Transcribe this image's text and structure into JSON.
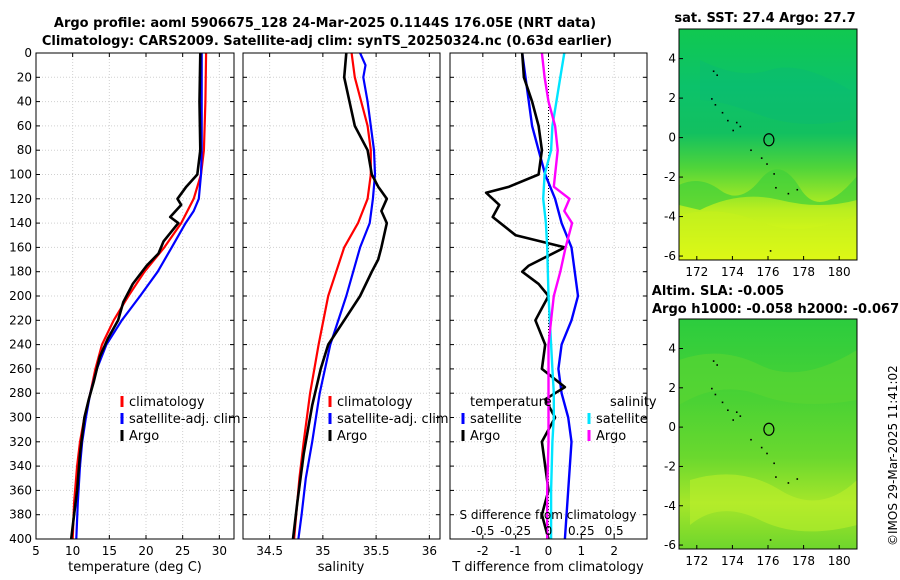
{
  "figure": {
    "title_line1": "Argo profile: aoml 5906675_128 24-Mar-2025 0.1144S 176.05E (NRT data)",
    "title_line2": "Climatology: CARS2009. Satellite-adj clim: synTS_20250324.nc (0.63d earlier)",
    "credit": "©IMOS 29-Mar-2025 11:41:02"
  },
  "colors": {
    "climatology": "#ff0000",
    "satellite": "#0000ff",
    "argo": "#000000",
    "sal_satellite": "#00e5ff",
    "sal_argo": "#ff00ff"
  },
  "chart_data": [
    {
      "id": "temperature",
      "type": "line",
      "xlabel": "temperature (deg C)",
      "ylabel": "",
      "xlim": [
        5,
        32
      ],
      "ylim": [
        400,
        0
      ],
      "xticks": [
        5,
        10,
        15,
        20,
        25,
        30
      ],
      "yticks": [
        0,
        20,
        40,
        60,
        80,
        100,
        120,
        140,
        160,
        180,
        200,
        220,
        240,
        260,
        280,
        300,
        320,
        340,
        360,
        380,
        400
      ],
      "legend": [
        "climatology",
        "satellite-adj. clim",
        "Argo"
      ],
      "series": [
        {
          "name": "climatology",
          "x": [
            28.2,
            28.1,
            27.9,
            27.5,
            26.5,
            24.8,
            22.5,
            19.8,
            17.6,
            15.6,
            14.0,
            13.1,
            12.4,
            11.6,
            11.0,
            10.6,
            10.2,
            10.0
          ],
          "y": [
            0,
            40,
            80,
            100,
            120,
            140,
            160,
            180,
            200,
            220,
            240,
            260,
            280,
            300,
            320,
            340,
            370,
            400
          ]
        },
        {
          "name": "satellite-adj. clim",
          "x": [
            27.6,
            27.6,
            27.6,
            27.5,
            27.2,
            26.5,
            25.4,
            23.5,
            21.6,
            19.2,
            16.7,
            14.6,
            13.3,
            12.4,
            11.8,
            11.3,
            11.0,
            10.7,
            10.5
          ],
          "y": [
            0,
            40,
            80,
            100,
            120,
            130,
            140,
            160,
            180,
            200,
            220,
            240,
            260,
            280,
            300,
            320,
            340,
            370,
            400
          ]
        },
        {
          "name": "Argo",
          "x": [
            27.4,
            27.3,
            27.4,
            27.0,
            25.5,
            24.3,
            24.8,
            23.3,
            24.4,
            22.4,
            21.7,
            20.1,
            18.2,
            16.9,
            16.2,
            14.8,
            13.7,
            12.9,
            12.2,
            11.6,
            11.0,
            10.6,
            10.2,
            9.8
          ],
          "y": [
            0,
            40,
            80,
            100,
            110,
            120,
            125,
            135,
            140,
            155,
            165,
            175,
            190,
            205,
            220,
            235,
            250,
            270,
            285,
            300,
            330,
            360,
            380,
            400
          ]
        }
      ]
    },
    {
      "id": "salinity",
      "type": "line",
      "xlabel": "salinity",
      "ylabel": "",
      "xlim": [
        34.25,
        36.1
      ],
      "ylim": [
        400,
        0
      ],
      "xticks": [
        34.5,
        35,
        35.5,
        36
      ],
      "legend": [
        "climatology",
        "satellite-adj. clim",
        "Argo"
      ],
      "series": [
        {
          "name": "climatology",
          "x": [
            35.27,
            35.3,
            35.36,
            35.42,
            35.45,
            35.45,
            35.42,
            35.33,
            35.2,
            35.05,
            34.96,
            34.88,
            34.82,
            34.78,
            34.75,
            34.73
          ],
          "y": [
            0,
            20,
            40,
            60,
            80,
            100,
            120,
            140,
            160,
            200,
            240,
            280,
            320,
            350,
            380,
            400
          ]
        },
        {
          "name": "satellite-adj. clim",
          "x": [
            35.35,
            35.4,
            35.38,
            35.42,
            35.48,
            35.49,
            35.47,
            35.44,
            35.35,
            35.22,
            35.07,
            34.97,
            34.9,
            34.84,
            34.8,
            34.77
          ],
          "y": [
            0,
            10,
            20,
            40,
            80,
            100,
            120,
            140,
            160,
            200,
            240,
            280,
            320,
            350,
            380,
            400
          ]
        },
        {
          "name": "Argo",
          "x": [
            35.22,
            35.2,
            35.25,
            35.3,
            35.42,
            35.46,
            35.52,
            35.6,
            35.55,
            35.6,
            35.55,
            35.52,
            35.46,
            35.35,
            35.2,
            35.05,
            34.98,
            34.9,
            34.82,
            34.76,
            34.72
          ],
          "y": [
            0,
            20,
            40,
            60,
            80,
            100,
            110,
            120,
            130,
            140,
            160,
            170,
            180,
            200,
            220,
            240,
            260,
            290,
            330,
            370,
            400
          ]
        }
      ]
    },
    {
      "id": "difference",
      "type": "line",
      "xlabel": "T difference from climatology",
      "top_axis_label": "S difference from climatology",
      "xlim": [
        -3,
        3
      ],
      "top_xlim": [
        -0.75,
        0.75
      ],
      "ylim": [
        400,
        0
      ],
      "xticks": [
        -2,
        -1,
        0,
        1,
        2
      ],
      "top_xticks": [
        -0.5,
        -0.25,
        0,
        0.25,
        0.5
      ],
      "legend_left_title": "temperature",
      "legend_right_title": "salinity",
      "legend_left": [
        "satellite",
        "Argo"
      ],
      "legend_right": [
        "satellite",
        "Argo"
      ],
      "series": [
        {
          "name": "T satellite",
          "axis": "bottom",
          "x": [
            -0.8,
            -0.7,
            -0.6,
            -0.5,
            -0.3,
            -0.1,
            0.2,
            0.4,
            0.7,
            0.9,
            0.7,
            0.4,
            0.3,
            0.4,
            0.6,
            0.7,
            0.6,
            0.5
          ],
          "y": [
            0,
            20,
            40,
            60,
            80,
            100,
            120,
            140,
            160,
            200,
            220,
            240,
            260,
            280,
            300,
            320,
            360,
            400
          ]
        },
        {
          "name": "T Argo",
          "axis": "bottom",
          "x": [
            -0.8,
            -0.75,
            -0.5,
            -0.3,
            -0.2,
            -0.3,
            -1.2,
            -1.9,
            -1.5,
            -1.7,
            -1.0,
            0.5,
            -0.6,
            -0.8,
            -0.3,
            0.0,
            -0.2,
            -0.4,
            -0.1,
            -0.2,
            0.5,
            -0.1,
            0.2,
            -0.2,
            -0.1,
            0.0,
            -0.2,
            0.0
          ],
          "y": [
            0,
            20,
            40,
            60,
            80,
            100,
            110,
            115,
            125,
            135,
            150,
            160,
            175,
            180,
            190,
            200,
            210,
            220,
            240,
            260,
            275,
            285,
            300,
            320,
            340,
            360,
            380,
            400
          ]
        },
        {
          "name": "S satellite",
          "axis": "top",
          "x": [
            0.12,
            0.09,
            0.06,
            0.03,
            0.02,
            -0.03,
            -0.04,
            -0.02,
            -0.01,
            0.0,
            0.02,
            0.03,
            0.04,
            0.04,
            0.03,
            0.02,
            0.02
          ],
          "y": [
            0,
            20,
            40,
            60,
            80,
            100,
            120,
            140,
            160,
            200,
            240,
            260,
            280,
            300,
            320,
            360,
            400
          ]
        },
        {
          "name": "S Argo",
          "axis": "top",
          "x": [
            -0.05,
            -0.03,
            0.0,
            0.05,
            0.07,
            0.05,
            0.04,
            0.16,
            0.12,
            0.18,
            0.13,
            0.09,
            0.04,
            0.02,
            0.0,
            0.0,
            0.0,
            -0.01,
            -0.01
          ],
          "y": [
            0,
            20,
            40,
            60,
            80,
            100,
            110,
            120,
            130,
            140,
            160,
            180,
            200,
            220,
            240,
            280,
            320,
            360,
            400
          ]
        }
      ]
    },
    {
      "id": "sst_map",
      "type": "heatmap",
      "title": "sat. SST: 27.4 Argo: 27.7",
      "xlim": [
        171,
        181
      ],
      "ylim": [
        -6.2,
        5.5
      ],
      "xticks": [
        172,
        174,
        176,
        178,
        180
      ],
      "yticks": [
        4,
        2,
        0,
        -2,
        -4,
        -6
      ],
      "marker": {
        "lon": 176.05,
        "lat": -0.11
      }
    },
    {
      "id": "sla_map",
      "type": "heatmap",
      "title_line1": "Altim. SLA: -0.005",
      "title_line2": "Argo h1000: -0.058 h2000: -0.067",
      "xlim": [
        171,
        181
      ],
      "ylim": [
        -6.2,
        5.5
      ],
      "xticks": [
        172,
        174,
        176,
        178,
        180
      ],
      "yticks": [
        4,
        2,
        0,
        -2,
        -4,
        -6
      ],
      "marker": {
        "lon": 176.05,
        "lat": -0.11
      }
    }
  ]
}
